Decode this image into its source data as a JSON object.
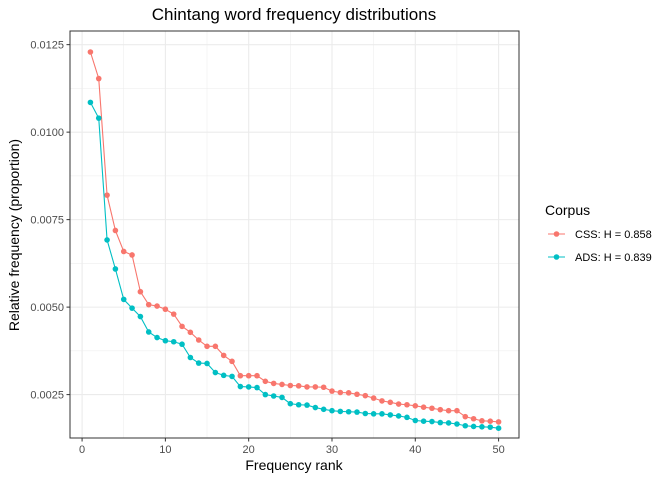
{
  "chart_data": {
    "type": "line",
    "title": "Chintang word frequency distributions",
    "xlabel": "Frequency rank",
    "ylabel": "Relative frequency (proportion)",
    "xlim": [
      -1.45,
      52.45
    ],
    "ylim": [
      0.00126,
      0.01289
    ],
    "x_ticks": [
      0,
      10,
      20,
      30,
      40,
      50
    ],
    "x_tick_labels": [
      "0",
      "10",
      "20",
      "30",
      "40",
      "50"
    ],
    "y_ticks": [
      0.0025,
      0.005,
      0.0075,
      0.01,
      0.0125
    ],
    "y_tick_labels": [
      "0.0025",
      "0.0050",
      "0.0075",
      "0.0100",
      "0.0125"
    ],
    "grid": true,
    "legend": {
      "title": "Corpus",
      "position": "right"
    },
    "x": [
      1,
      2,
      3,
      4,
      5,
      6,
      7,
      8,
      9,
      10,
      11,
      12,
      13,
      14,
      15,
      16,
      17,
      18,
      19,
      20,
      21,
      22,
      23,
      24,
      25,
      26,
      27,
      28,
      29,
      30,
      31,
      32,
      33,
      34,
      35,
      36,
      37,
      38,
      39,
      40,
      41,
      42,
      43,
      44,
      45,
      46,
      47,
      48,
      49,
      50
    ],
    "series": [
      {
        "name": "CSS: H = 0.858",
        "color": "#F8766D",
        "values": [
          0.01229,
          0.01153,
          0.0082,
          0.00719,
          0.00659,
          0.00649,
          0.00544,
          0.00507,
          0.00503,
          0.00494,
          0.0048,
          0.00445,
          0.00428,
          0.00406,
          0.00388,
          0.00388,
          0.00362,
          0.00345,
          0.00304,
          0.00304,
          0.00304,
          0.00288,
          0.00282,
          0.00279,
          0.00276,
          0.00275,
          0.00272,
          0.00272,
          0.00271,
          0.0026,
          0.00256,
          0.00255,
          0.00251,
          0.00247,
          0.0024,
          0.00232,
          0.00228,
          0.00223,
          0.00221,
          0.00218,
          0.00214,
          0.00211,
          0.00207,
          0.00204,
          0.00204,
          0.00187,
          0.00181,
          0.00175,
          0.00174,
          0.00172
        ]
      },
      {
        "name": "ADS: H = 0.839",
        "color": "#00BFC4",
        "values": [
          0.01085,
          0.0104,
          0.00692,
          0.00609,
          0.00522,
          0.00497,
          0.00473,
          0.00429,
          0.00413,
          0.00404,
          0.00401,
          0.00394,
          0.00356,
          0.0034,
          0.00339,
          0.00313,
          0.00305,
          0.00302,
          0.00273,
          0.00272,
          0.0027,
          0.0025,
          0.00246,
          0.00242,
          0.00224,
          0.00221,
          0.0022,
          0.00213,
          0.00208,
          0.00204,
          0.00202,
          0.00201,
          0.002,
          0.00196,
          0.00195,
          0.00195,
          0.00192,
          0.00189,
          0.00185,
          0.00176,
          0.00174,
          0.00173,
          0.0017,
          0.00169,
          0.00166,
          0.00161,
          0.00159,
          0.00158,
          0.00157,
          0.00154
        ]
      }
    ]
  }
}
